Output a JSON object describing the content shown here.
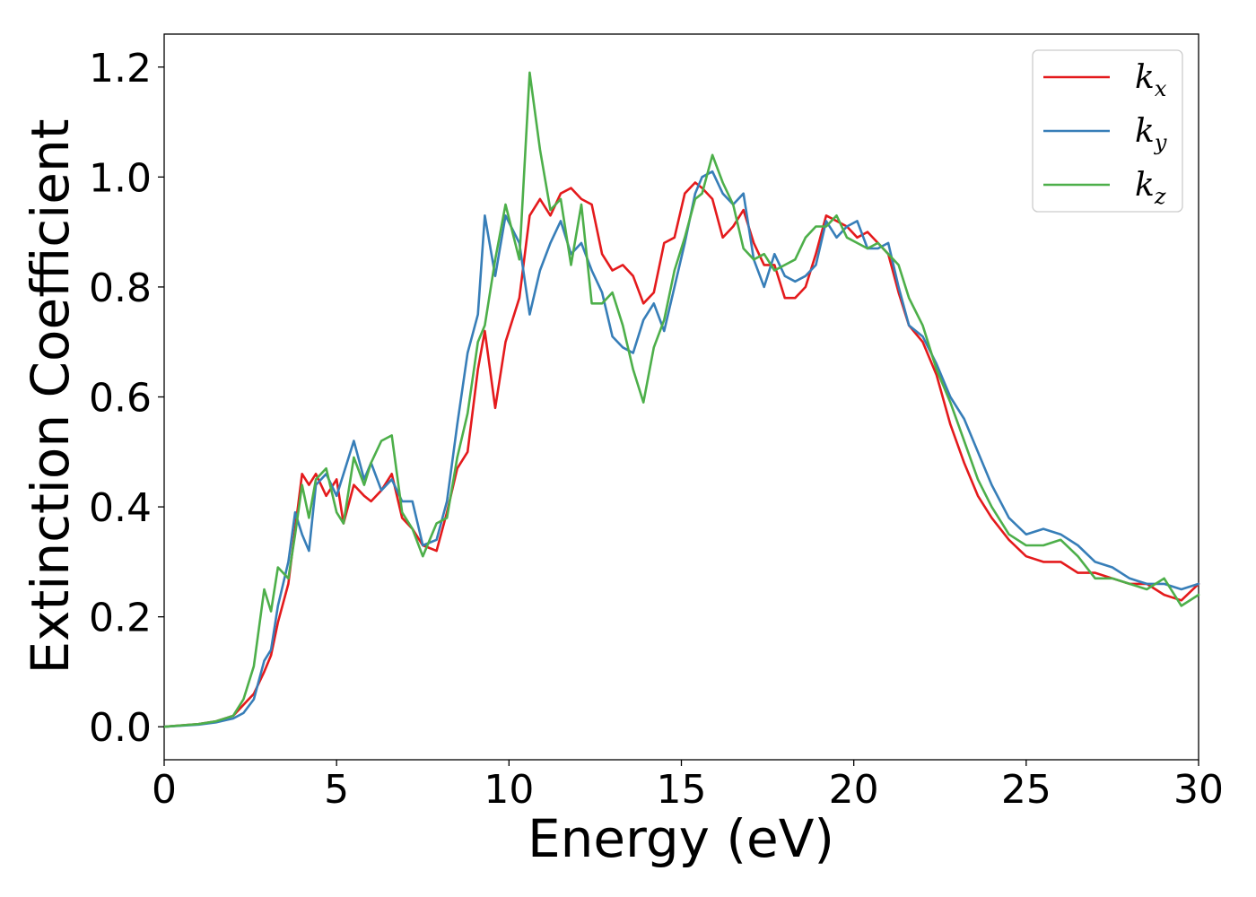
{
  "chart_data": {
    "type": "line",
    "xlabel": "Energy (eV)",
    "ylabel": "Extinction Coefficient",
    "xlim": [
      0,
      30
    ],
    "ylim": [
      -0.06,
      1.26
    ],
    "xticks": [
      0,
      5,
      10,
      15,
      20,
      25,
      30
    ],
    "xtick_labels": [
      "0",
      "5",
      "10",
      "15",
      "20",
      "25",
      "30"
    ],
    "yticks": [
      0.0,
      0.2,
      0.4,
      0.6,
      0.8,
      1.0,
      1.2
    ],
    "ytick_labels": [
      "0.0",
      "0.2",
      "0.4",
      "0.6",
      "0.8",
      "1.0",
      "1.2"
    ],
    "grid": false,
    "legend_position": "top-right",
    "series": [
      {
        "name": "kx",
        "label_main": "k",
        "label_sub": "x",
        "color": "#e41a1c",
        "x": [
          0,
          1,
          1.5,
          2,
          2.3,
          2.6,
          2.9,
          3.1,
          3.3,
          3.6,
          3.8,
          4.0,
          4.2,
          4.4,
          4.7,
          5.0,
          5.2,
          5.5,
          5.8,
          6.0,
          6.3,
          6.6,
          6.9,
          7.2,
          7.5,
          7.9,
          8.2,
          8.5,
          8.8,
          9.1,
          9.3,
          9.6,
          9.9,
          10.3,
          10.6,
          10.9,
          11.2,
          11.5,
          11.8,
          12.1,
          12.4,
          12.7,
          13.0,
          13.3,
          13.6,
          13.9,
          14.2,
          14.5,
          14.8,
          15.1,
          15.4,
          15.6,
          15.9,
          16.2,
          16.5,
          16.8,
          17.1,
          17.4,
          17.7,
          18.0,
          18.3,
          18.6,
          18.9,
          19.2,
          19.5,
          19.8,
          20.1,
          20.4,
          20.7,
          21.0,
          21.3,
          21.6,
          22.0,
          22.4,
          22.8,
          23.2,
          23.6,
          24.0,
          24.5,
          25.0,
          25.5,
          26.0,
          26.5,
          27.0,
          27.5,
          28.0,
          28.5,
          29.0,
          29.5,
          30
        ],
        "y": [
          0.0,
          0.005,
          0.01,
          0.02,
          0.04,
          0.06,
          0.1,
          0.13,
          0.19,
          0.26,
          0.36,
          0.46,
          0.44,
          0.46,
          0.42,
          0.45,
          0.37,
          0.44,
          0.42,
          0.41,
          0.43,
          0.46,
          0.38,
          0.36,
          0.33,
          0.32,
          0.39,
          0.47,
          0.5,
          0.65,
          0.72,
          0.58,
          0.7,
          0.78,
          0.93,
          0.96,
          0.93,
          0.97,
          0.98,
          0.96,
          0.95,
          0.86,
          0.83,
          0.84,
          0.82,
          0.77,
          0.79,
          0.88,
          0.89,
          0.97,
          0.99,
          0.98,
          0.96,
          0.89,
          0.91,
          0.94,
          0.88,
          0.84,
          0.84,
          0.78,
          0.78,
          0.8,
          0.86,
          0.93,
          0.92,
          0.91,
          0.89,
          0.9,
          0.88,
          0.86,
          0.79,
          0.73,
          0.7,
          0.64,
          0.55,
          0.48,
          0.42,
          0.38,
          0.34,
          0.31,
          0.3,
          0.3,
          0.28,
          0.28,
          0.27,
          0.26,
          0.26,
          0.24,
          0.23,
          0.26
        ]
      },
      {
        "name": "ky",
        "label_main": "k",
        "label_sub": "y",
        "color": "#377eb8",
        "x": [
          0,
          1,
          1.5,
          2,
          2.3,
          2.6,
          2.9,
          3.1,
          3.3,
          3.6,
          3.8,
          4.0,
          4.2,
          4.4,
          4.7,
          5.0,
          5.2,
          5.5,
          5.8,
          6.0,
          6.3,
          6.6,
          6.9,
          7.2,
          7.5,
          7.9,
          8.2,
          8.5,
          8.8,
          9.1,
          9.3,
          9.6,
          9.9,
          10.3,
          10.6,
          10.9,
          11.2,
          11.5,
          11.8,
          12.1,
          12.4,
          12.7,
          13.0,
          13.3,
          13.6,
          13.9,
          14.2,
          14.5,
          14.8,
          15.1,
          15.4,
          15.6,
          15.9,
          16.2,
          16.5,
          16.8,
          17.1,
          17.4,
          17.7,
          18.0,
          18.3,
          18.6,
          18.9,
          19.2,
          19.5,
          19.8,
          20.1,
          20.4,
          20.7,
          21.0,
          21.3,
          21.6,
          22.0,
          22.4,
          22.8,
          23.2,
          23.6,
          24.0,
          24.5,
          25.0,
          25.5,
          26.0,
          26.5,
          27.0,
          27.5,
          28.0,
          28.5,
          29.0,
          29.5,
          30
        ],
        "y": [
          0.0,
          0.004,
          0.008,
          0.015,
          0.025,
          0.05,
          0.12,
          0.14,
          0.22,
          0.3,
          0.39,
          0.35,
          0.32,
          0.44,
          0.46,
          0.42,
          0.46,
          0.52,
          0.45,
          0.48,
          0.43,
          0.45,
          0.41,
          0.41,
          0.33,
          0.34,
          0.41,
          0.55,
          0.68,
          0.75,
          0.93,
          0.82,
          0.93,
          0.88,
          0.75,
          0.83,
          0.88,
          0.92,
          0.86,
          0.88,
          0.83,
          0.79,
          0.71,
          0.69,
          0.68,
          0.74,
          0.77,
          0.72,
          0.8,
          0.88,
          0.97,
          1.0,
          1.01,
          0.97,
          0.95,
          0.97,
          0.85,
          0.8,
          0.86,
          0.82,
          0.81,
          0.82,
          0.84,
          0.92,
          0.89,
          0.91,
          0.92,
          0.87,
          0.87,
          0.88,
          0.8,
          0.73,
          0.71,
          0.66,
          0.6,
          0.56,
          0.5,
          0.44,
          0.38,
          0.35,
          0.36,
          0.35,
          0.33,
          0.3,
          0.29,
          0.27,
          0.26,
          0.26,
          0.25,
          0.26
        ]
      },
      {
        "name": "kz",
        "label_main": "k",
        "label_sub": "z",
        "color": "#4daf4a",
        "x": [
          0,
          1,
          1.5,
          2,
          2.3,
          2.6,
          2.9,
          3.1,
          3.3,
          3.6,
          3.8,
          4.0,
          4.2,
          4.4,
          4.7,
          5.0,
          5.2,
          5.5,
          5.8,
          6.0,
          6.3,
          6.6,
          6.9,
          7.2,
          7.5,
          7.9,
          8.2,
          8.5,
          8.8,
          9.1,
          9.3,
          9.6,
          9.9,
          10.3,
          10.6,
          10.9,
          11.2,
          11.5,
          11.8,
          12.1,
          12.4,
          12.7,
          13.0,
          13.3,
          13.6,
          13.9,
          14.2,
          14.5,
          14.8,
          15.1,
          15.4,
          15.6,
          15.9,
          16.2,
          16.5,
          16.8,
          17.1,
          17.4,
          17.7,
          18.0,
          18.3,
          18.6,
          18.9,
          19.2,
          19.5,
          19.8,
          20.1,
          20.4,
          20.7,
          21.0,
          21.3,
          21.6,
          22.0,
          22.4,
          22.8,
          23.2,
          23.6,
          24.0,
          24.5,
          25.0,
          25.5,
          26.0,
          26.5,
          27.0,
          27.5,
          28.0,
          28.5,
          29.0,
          29.5,
          30
        ],
        "y": [
          0.0,
          0.005,
          0.01,
          0.02,
          0.05,
          0.11,
          0.25,
          0.21,
          0.29,
          0.27,
          0.35,
          0.44,
          0.38,
          0.45,
          0.47,
          0.39,
          0.37,
          0.49,
          0.44,
          0.48,
          0.52,
          0.53,
          0.39,
          0.36,
          0.31,
          0.37,
          0.38,
          0.49,
          0.57,
          0.7,
          0.73,
          0.85,
          0.95,
          0.85,
          1.19,
          1.05,
          0.94,
          0.96,
          0.84,
          0.95,
          0.77,
          0.77,
          0.79,
          0.73,
          0.65,
          0.59,
          0.69,
          0.74,
          0.83,
          0.89,
          0.96,
          0.97,
          1.04,
          0.99,
          0.95,
          0.87,
          0.85,
          0.86,
          0.83,
          0.84,
          0.85,
          0.89,
          0.91,
          0.91,
          0.93,
          0.89,
          0.88,
          0.87,
          0.88,
          0.86,
          0.84,
          0.78,
          0.73,
          0.65,
          0.59,
          0.52,
          0.45,
          0.4,
          0.35,
          0.33,
          0.33,
          0.34,
          0.31,
          0.27,
          0.27,
          0.26,
          0.25,
          0.27,
          0.22,
          0.24
        ]
      }
    ]
  }
}
